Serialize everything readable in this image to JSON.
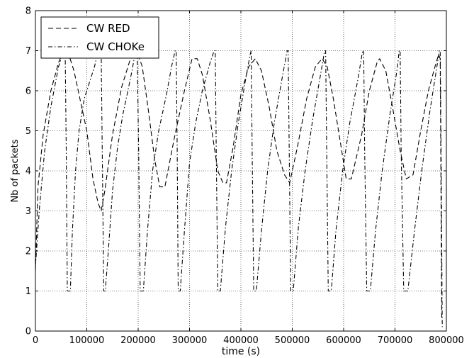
{
  "chart_data": {
    "type": "line",
    "title": "",
    "xlabel": "time (s)",
    "ylabel": "Nb of packets",
    "xlim": [
      0,
      800000
    ],
    "ylim": [
      0,
      8
    ],
    "grid": true,
    "legend_position": "top-left",
    "xticks": [
      0,
      100000,
      200000,
      300000,
      400000,
      500000,
      600000,
      700000,
      800000
    ],
    "xtick_labels": [
      "0",
      "100000",
      "200000",
      "300000",
      "400000",
      "500000",
      "600000",
      "700000",
      "800000"
    ],
    "yticks": [
      0,
      1,
      2,
      3,
      4,
      5,
      6,
      7,
      8
    ],
    "ytick_labels": [
      "0",
      "1",
      "2",
      "3",
      "4",
      "5",
      "6",
      "7",
      "8"
    ],
    "series": [
      {
        "name": "CW RED",
        "style": "dashed",
        "color": "#000000",
        "x": [
          0,
          5000,
          15000,
          30000,
          45000,
          55000,
          65000,
          75000,
          85000,
          100000,
          112000,
          122000,
          128000,
          135000,
          150000,
          168000,
          185000,
          200000,
          208000,
          220000,
          232000,
          242000,
          252000,
          270000,
          290000,
          305000,
          315000,
          325000,
          340000,
          355000,
          365000,
          372000,
          385000,
          400000,
          415000,
          428000,
          440000,
          455000,
          470000,
          485000,
          495000,
          510000,
          528000,
          545000,
          558000,
          568000,
          580000,
          595000,
          605000,
          615000,
          635000,
          650000,
          665000,
          670000,
          682000,
          695000,
          710000,
          722000,
          735000,
          750000,
          765000,
          780000,
          785000,
          788000,
          791000
        ],
        "y": [
          1.5,
          3.6,
          4.9,
          6.0,
          6.7,
          7.0,
          6.9,
          6.5,
          5.9,
          5.0,
          3.8,
          3.2,
          3.0,
          3.5,
          4.9,
          6.1,
          6.8,
          6.9,
          6.6,
          5.5,
          4.3,
          3.6,
          3.6,
          4.8,
          6.0,
          6.8,
          6.8,
          6.4,
          5.3,
          4.0,
          3.7,
          3.7,
          4.6,
          5.9,
          6.6,
          6.8,
          6.5,
          5.6,
          4.5,
          3.9,
          3.7,
          4.6,
          5.8,
          6.6,
          6.8,
          6.6,
          5.8,
          4.6,
          3.8,
          3.8,
          4.9,
          6.0,
          6.7,
          6.8,
          6.5,
          5.6,
          4.5,
          3.8,
          3.9,
          5.0,
          6.0,
          6.7,
          6.9,
          6.8,
          0.3
        ]
      },
      {
        "name": "CW CHOKe",
        "style": "dashdot",
        "color": "#000000",
        "x": [
          0,
          8000,
          18000,
          30000,
          45000,
          55000,
          58000,
          60000,
          62000,
          65000,
          68000,
          72000,
          78000,
          85000,
          95000,
          105000,
          115000,
          122000,
          128000,
          130000,
          133000,
          136000,
          142000,
          150000,
          160000,
          170000,
          180000,
          188000,
          195000,
          198000,
          201000,
          204000,
          210000,
          218000,
          228000,
          240000,
          255000,
          265000,
          272000,
          274000,
          276000,
          278000,
          282000,
          290000,
          300000,
          312000,
          325000,
          340000,
          348000,
          350000,
          352000,
          355000,
          360000,
          370000,
          382000,
          395000,
          408000,
          418000,
          420000,
          422000,
          425000,
          430000,
          440000,
          452000,
          465000,
          480000,
          490000,
          492000,
          494000,
          497000,
          502000,
          512000,
          525000,
          540000,
          555000,
          563000,
          565000,
          567000,
          570000,
          576000,
          585000,
          598000,
          612000,
          628000,
          637000,
          639000,
          641000,
          645000,
          652000,
          662000,
          675000,
          690000,
          705000,
          708000,
          710000,
          712000,
          717000,
          725000,
          738000,
          752000,
          768000,
          784000,
          786000,
          788000,
          790000,
          792000
        ],
        "y": [
          1.6,
          3.1,
          4.5,
          5.6,
          6.6,
          7.0,
          7.0,
          4.5,
          1.0,
          1.0,
          1.0,
          2.5,
          4.0,
          5.0,
          5.8,
          6.2,
          6.6,
          7.0,
          7.0,
          4.5,
          1.0,
          1.0,
          2.0,
          3.5,
          4.6,
          5.4,
          6.0,
          6.5,
          7.0,
          7.0,
          4.5,
          1.0,
          1.0,
          2.5,
          4.0,
          5.0,
          5.9,
          6.6,
          7.0,
          7.0,
          4.5,
          1.0,
          1.0,
          2.5,
          4.2,
          5.2,
          6.0,
          6.7,
          7.0,
          7.0,
          4.5,
          1.0,
          1.0,
          2.6,
          4.0,
          5.2,
          6.2,
          6.9,
          7.0,
          4.5,
          1.0,
          1.0,
          2.5,
          4.0,
          5.2,
          6.3,
          7.0,
          7.0,
          4.5,
          1.0,
          1.0,
          2.6,
          4.0,
          5.3,
          6.4,
          7.0,
          7.0,
          4.5,
          1.0,
          1.0,
          2.5,
          4.0,
          5.2,
          6.3,
          7.0,
          7.0,
          4.5,
          1.0,
          1.0,
          2.5,
          4.0,
          5.4,
          6.6,
          7.0,
          7.0,
          4.5,
          1.0,
          1.0,
          2.5,
          4.0,
          5.5,
          6.8,
          7.0,
          7.0,
          4.0,
          0.1
        ]
      }
    ]
  }
}
